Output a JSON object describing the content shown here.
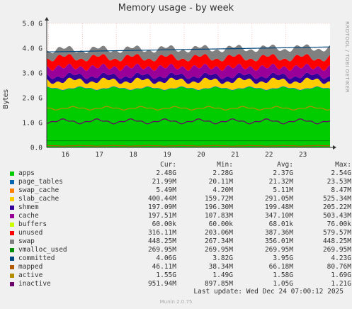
{
  "title": "Memory usage - by week",
  "ylabel": "Bytes",
  "side_label": "RRDTOOL / TOBI OETIKER",
  "columns": [
    "Cur:",
    "Min:",
    "Avg:",
    "Max:"
  ],
  "last_update": "Last update: Wed Dec 24 07:00:12 2025",
  "munin_version": "Munin 2.0.75",
  "chart_data": {
    "type": "area",
    "title": "Memory usage - by week",
    "ylabel": "Bytes",
    "ylim": [
      0,
      5.0
    ],
    "y_unit": "G",
    "y_ticks": [
      "0.0",
      "1.0 G",
      "2.0 G",
      "3.0 G",
      "4.0 G",
      "5.0 G"
    ],
    "y_tick_values": [
      0,
      1,
      2,
      3,
      4,
      5
    ],
    "x_ticks": [
      "16",
      "17",
      "18",
      "19",
      "20",
      "21",
      "22",
      "23"
    ],
    "x_tick_days": [
      16,
      17,
      18,
      19,
      20,
      21,
      22,
      23
    ],
    "x_range_days": [
      15.45,
      23.8
    ],
    "grid": true,
    "stack_order": [
      "apps",
      "page_tables",
      "swap_cache",
      "slab_cache",
      "shmem",
      "cache",
      "buffers",
      "unused",
      "swap"
    ],
    "stack_avg_gb": {
      "apps": 2.37,
      "page_tables": 0.02,
      "swap_cache": 0.005,
      "slab_cache": 0.291,
      "shmem": 0.199,
      "cache": 0.347,
      "buffers": 0.0,
      "unused": 0.387,
      "swap": 0.356
    },
    "series": [
      {
        "name": "apps",
        "color": "#00cc00",
        "cur": "2.48G",
        "min": "2.28G",
        "avg": "2.37G",
        "max": "2.54G"
      },
      {
        "name": "page_tables",
        "color": "#0066b3",
        "cur": "21.99M",
        "min": "20.11M",
        "avg": "21.32M",
        "max": "23.53M"
      },
      {
        "name": "swap_cache",
        "color": "#ff8000",
        "cur": "5.49M",
        "min": "4.20M",
        "avg": "5.11M",
        "max": "8.47M"
      },
      {
        "name": "slab_cache",
        "color": "#ffcc00",
        "cur": "400.44M",
        "min": "159.72M",
        "avg": "291.05M",
        "max": "525.34M"
      },
      {
        "name": "shmem",
        "color": "#330099",
        "cur": "197.09M",
        "min": "196.30M",
        "avg": "199.48M",
        "max": "205.22M"
      },
      {
        "name": "cache",
        "color": "#990099",
        "cur": "197.51M",
        "min": "107.83M",
        "avg": "347.10M",
        "max": "503.43M"
      },
      {
        "name": "buffers",
        "color": "#ccff00",
        "cur": "60.00k",
        "min": "60.00k",
        "avg": "68.01k",
        "max": "76.00k"
      },
      {
        "name": "unused",
        "color": "#ff0000",
        "cur": "316.11M",
        "min": "203.06M",
        "avg": "387.36M",
        "max": "579.57M"
      },
      {
        "name": "swap",
        "color": "#808080",
        "cur": "448.25M",
        "min": "267.34M",
        "avg": "356.01M",
        "max": "448.25M"
      },
      {
        "name": "vmalloc_used",
        "color": "#008f00",
        "cur": "269.95M",
        "min": "269.95M",
        "avg": "269.95M",
        "max": "269.95M"
      },
      {
        "name": "committed",
        "color": "#00487d",
        "cur": "4.06G",
        "min": "3.82G",
        "avg": "3.95G",
        "max": "4.23G"
      },
      {
        "name": "mapped",
        "color": "#b35a00",
        "cur": "46.11M",
        "min": "38.34M",
        "avg": "66.18M",
        "max": "80.76M"
      },
      {
        "name": "active",
        "color": "#b38f00",
        "cur": "1.55G",
        "min": "1.49G",
        "avg": "1.58G",
        "max": "1.69G"
      },
      {
        "name": "inactive",
        "color": "#6b006b",
        "cur": "951.94M",
        "min": "897.85M",
        "avg": "1.05G",
        "max": "1.21G"
      }
    ]
  }
}
